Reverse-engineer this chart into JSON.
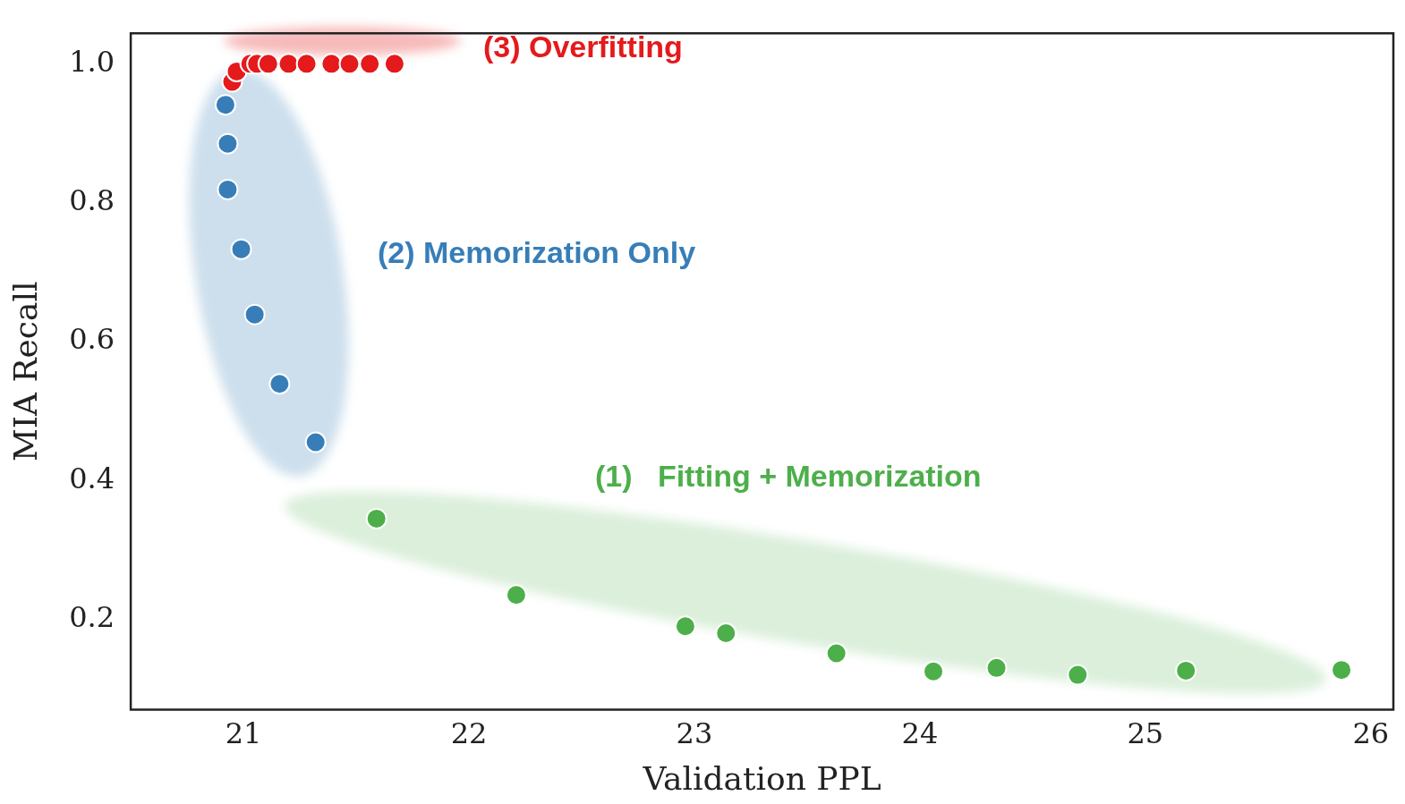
{
  "chart_data": {
    "type": "scatter",
    "xlabel": "Validation PPL",
    "ylabel": "MIA Recall",
    "xlim": [
      20.5,
      26.1
    ],
    "ylim": [
      0.07,
      1.044
    ],
    "xticks": [
      21,
      22,
      23,
      24,
      25,
      26
    ],
    "yticks": [
      {
        "value": 0.2,
        "label": "0.2"
      },
      {
        "value": 0.4,
        "label": "0.4"
      },
      {
        "value": 0.6,
        "label": "0.6"
      },
      {
        "value": 0.8,
        "label": "0.8"
      },
      {
        "value": 1,
        "label": "1.0"
      }
    ],
    "grid": false,
    "legend": false,
    "marker": "circle",
    "series": [
      {
        "name": "(1)   Fitting + Memorization",
        "color": "#4daf4a",
        "x": [
          21.59,
          22.21,
          22.96,
          23.14,
          23.63,
          24.06,
          24.34,
          24.7,
          25.18,
          25.87
        ],
        "values": [
          0.345,
          0.235,
          0.19,
          0.18,
          0.151,
          0.125,
          0.13,
          0.12,
          0.126,
          0.127
        ]
      },
      {
        "name": "(2) Memorization Only",
        "color": "#377eb8",
        "x": [
          20.92,
          20.93,
          20.93,
          20.99,
          21.05,
          21.16,
          21.32
        ],
        "values": [
          0.941,
          0.885,
          0.819,
          0.733,
          0.639,
          0.539,
          0.455
        ]
      },
      {
        "name": "(3) Overfitting",
        "color": "#e41a1c",
        "x": [
          20.95,
          20.97,
          21.03,
          21.06,
          21.11,
          21.2,
          21.28,
          21.39,
          21.47,
          21.56,
          21.67
        ],
        "values": [
          0.974,
          0.989,
          1,
          1,
          1,
          1,
          1,
          1,
          1,
          1,
          1
        ]
      }
    ]
  }
}
